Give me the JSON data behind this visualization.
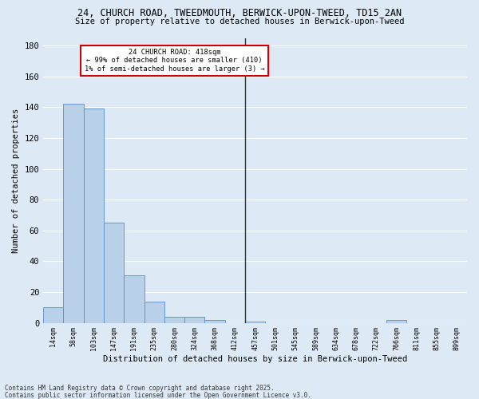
{
  "title1": "24, CHURCH ROAD, TWEEDMOUTH, BERWICK-UPON-TWEED, TD15 2AN",
  "title2": "Size of property relative to detached houses in Berwick-upon-Tweed",
  "xlabel": "Distribution of detached houses by size in Berwick-upon-Tweed",
  "ylabel": "Number of detached properties",
  "categories": [
    "14sqm",
    "58sqm",
    "103sqm",
    "147sqm",
    "191sqm",
    "235sqm",
    "280sqm",
    "324sqm",
    "368sqm",
    "412sqm",
    "457sqm",
    "501sqm",
    "545sqm",
    "589sqm",
    "634sqm",
    "678sqm",
    "722sqm",
    "766sqm",
    "811sqm",
    "855sqm",
    "899sqm"
  ],
  "values": [
    10,
    142,
    139,
    65,
    31,
    14,
    4,
    4,
    2,
    0,
    1,
    0,
    0,
    0,
    0,
    0,
    0,
    2,
    0,
    0,
    0
  ],
  "bar_color": "#b8d0e8",
  "bar_edge_color": "#5b8ec4",
  "vline_color": "#333333",
  "annotation_title": "24 CHURCH ROAD: 418sqm",
  "annotation_line1": "← 99% of detached houses are smaller (410)",
  "annotation_line2": "1% of semi-detached houses are larger (3) →",
  "annotation_box_color": "#cc0000",
  "ylim": [
    0,
    185
  ],
  "yticks": [
    0,
    20,
    40,
    60,
    80,
    100,
    120,
    140,
    160,
    180
  ],
  "background_color": "#ddeaf5",
  "fig_background_color": "#ddeaf5",
  "grid_color": "#ffffff",
  "footer1": "Contains HM Land Registry data © Crown copyright and database right 2025.",
  "footer2": "Contains public sector information licensed under the Open Government Licence v3.0."
}
